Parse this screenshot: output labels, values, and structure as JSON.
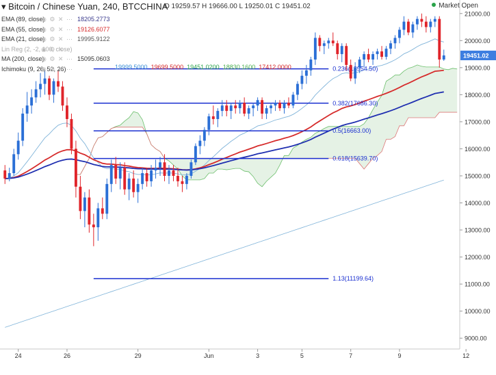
{
  "header": {
    "title": "Bitcoin / Chinese Yuan, 240, BTCCHINA",
    "ohlc_label": "O 19259.57 H 19666.00 L 19250.01 C 19451.02",
    "market_status": "Market Open"
  },
  "indicators": [
    {
      "label": "EMA (89, close)",
      "value": "18205.2773",
      "color": "#3a3a8c"
    },
    {
      "label": "EMA (55, close)",
      "value": "19126.6077",
      "color": "#d62b2b"
    },
    {
      "label": "EMA (21, close)",
      "value": "19995.9122",
      "color": "#555555"
    },
    {
      "label": "Lin Reg (2, -2, 100, close)",
      "value": "",
      "color": "#9aa7b5"
    },
    {
      "label": "MA (200, close)",
      "value": "15095.0603",
      "color": "#333333"
    },
    {
      "label": "Ichimoku (9, 26, 52, 26)",
      "value": "",
      "color": "#333333"
    }
  ],
  "ichimoku_values": [
    {
      "text": "19999.5000",
      "color": "#3b8fd6"
    },
    {
      "text": "19699.5000",
      "color": "#d62b2b"
    },
    {
      "text": "19451.0200",
      "color": "#2aa34a"
    },
    {
      "text": "18830.1600",
      "color": "#4caf50"
    },
    {
      "text": "17412.0000",
      "color": "#d62b2b"
    }
  ],
  "price_label": "19451.02",
  "chart_data": {
    "type": "candlestick",
    "title": "Bitcoin / Chinese Yuan, 240, BTCCHINA",
    "ylim": [
      8600,
      21500
    ],
    "y_ticks": [
      9000,
      10000,
      11000,
      12000,
      13000,
      14000,
      15000,
      16000,
      17000,
      18000,
      19000,
      20000,
      21000
    ],
    "x_ticks": [
      {
        "label": "24",
        "bar": 3
      },
      {
        "label": "26",
        "bar": 14
      },
      {
        "label": "29",
        "bar": 30
      },
      {
        "label": "Jun",
        "bar": 46
      },
      {
        "label": "3",
        "bar": 57
      },
      {
        "label": "5",
        "bar": 67
      },
      {
        "label": "7",
        "bar": 78
      },
      {
        "label": "9",
        "bar": 89
      },
      {
        "label": "12",
        "bar": 104
      }
    ],
    "fibonacci": [
      {
        "label": "0.236(18954.50)",
        "price": 18954.5,
        "bar_start": 20,
        "bar_end": 73
      },
      {
        "label": "0.382(17686.30)",
        "price": 17686.3,
        "bar_start": 20,
        "bar_end": 73
      },
      {
        "label": "0.5(16663.00)",
        "price": 16663.0,
        "bar_start": 20,
        "bar_end": 73
      },
      {
        "label": "0.618(15639.70)",
        "price": 15639.7,
        "bar_start": 20,
        "bar_end": 73
      },
      {
        "label": "1.13(11199.64)",
        "price": 11199.64,
        "bar_start": 20,
        "bar_end": 73
      }
    ],
    "candles": [
      [
        15200,
        15400,
        14700,
        14900
      ],
      [
        14900,
        15300,
        14800,
        15100
      ],
      [
        15100,
        16000,
        15000,
        15800
      ],
      [
        15800,
        16600,
        15600,
        16300
      ],
      [
        16300,
        17500,
        16100,
        17300
      ],
      [
        17300,
        18100,
        17000,
        17600
      ],
      [
        17600,
        18200,
        17300,
        17900
      ],
      [
        17900,
        18500,
        17700,
        18200
      ],
      [
        18200,
        18800,
        17900,
        18400
      ],
      [
        18400,
        18900,
        18000,
        18600
      ],
      [
        18600,
        18700,
        17800,
        18000
      ],
      [
        18000,
        18600,
        17700,
        18500
      ],
      [
        18500,
        18900,
        18100,
        18300
      ],
      [
        18300,
        18500,
        17400,
        17600
      ],
      [
        17600,
        17900,
        16800,
        17100
      ],
      [
        17100,
        17300,
        15800,
        16000
      ],
      [
        16000,
        16300,
        14200,
        14600
      ],
      [
        14600,
        15000,
        13400,
        13700
      ],
      [
        13700,
        14400,
        13100,
        14200
      ],
      [
        14200,
        14500,
        12900,
        13200
      ],
      [
        13200,
        13600,
        12400,
        13100
      ],
      [
        13100,
        14000,
        12600,
        13800
      ],
      [
        13800,
        14200,
        13400,
        13600
      ],
      [
        13600,
        14900,
        13400,
        14700
      ],
      [
        14700,
        15600,
        14400,
        15400
      ],
      [
        15400,
        15700,
        14700,
        14900
      ],
      [
        14900,
        15500,
        14500,
        15300
      ],
      [
        15300,
        15500,
        14300,
        14500
      ],
      [
        14500,
        15100,
        14100,
        14900
      ],
      [
        14900,
        15200,
        14200,
        14400
      ],
      [
        14400,
        14900,
        14000,
        14700
      ],
      [
        14700,
        15300,
        14500,
        15100
      ],
      [
        15100,
        15300,
        14600,
        14800
      ],
      [
        14800,
        15400,
        14600,
        15200
      ],
      [
        15200,
        15600,
        14900,
        15300
      ],
      [
        15300,
        15700,
        15000,
        15500
      ],
      [
        15500,
        15800,
        14800,
        15000
      ],
      [
        15000,
        15400,
        14700,
        15200
      ],
      [
        15200,
        15400,
        14800,
        15000
      ],
      [
        15000,
        15300,
        14600,
        14800
      ],
      [
        14800,
        15000,
        14400,
        14700
      ],
      [
        14700,
        15100,
        14500,
        15000
      ],
      [
        15000,
        15600,
        14900,
        15500
      ],
      [
        15500,
        16200,
        15400,
        16100
      ],
      [
        16100,
        16500,
        15800,
        16300
      ],
      [
        16300,
        16800,
        16100,
        16700
      ],
      [
        16700,
        17300,
        16500,
        17200
      ],
      [
        17200,
        17600,
        16900,
        17100
      ],
      [
        17100,
        17500,
        16800,
        17400
      ],
      [
        17400,
        17800,
        17200,
        17600
      ],
      [
        17600,
        17800,
        17200,
        17400
      ],
      [
        17400,
        17700,
        17100,
        17600
      ],
      [
        17600,
        17800,
        17300,
        17500
      ],
      [
        17500,
        17800,
        17300,
        17700
      ],
      [
        17700,
        17900,
        17200,
        17300
      ],
      [
        17300,
        17600,
        17100,
        17500
      ],
      [
        17500,
        17700,
        17200,
        17600
      ],
      [
        17600,
        17900,
        17400,
        17800
      ],
      [
        17800,
        17900,
        17100,
        17300
      ],
      [
        17300,
        17600,
        17100,
        17500
      ],
      [
        17500,
        17700,
        17300,
        17600
      ],
      [
        17600,
        17800,
        17400,
        17700
      ],
      [
        17700,
        17800,
        17400,
        17500
      ],
      [
        17500,
        17800,
        17300,
        17700
      ],
      [
        17700,
        17900,
        17500,
        17600
      ],
      [
        17600,
        18100,
        17500,
        18000
      ],
      [
        18000,
        18500,
        17800,
        18400
      ],
      [
        18400,
        18900,
        18200,
        18700
      ],
      [
        18700,
        19100,
        18400,
        18900
      ],
      [
        18900,
        19400,
        18700,
        19300
      ],
      [
        19300,
        20300,
        19100,
        20100
      ],
      [
        20100,
        20200,
        19600,
        19800
      ],
      [
        19800,
        20000,
        19500,
        19900
      ],
      [
        19900,
        20100,
        19700,
        20000
      ],
      [
        20000,
        20300,
        19800,
        19900
      ],
      [
        19900,
        20000,
        19300,
        19500
      ],
      [
        19500,
        19900,
        19200,
        19800
      ],
      [
        19800,
        19900,
        18900,
        19100
      ],
      [
        19100,
        19300,
        18500,
        18600
      ],
      [
        18600,
        19200,
        18400,
        19000
      ],
      [
        19000,
        19400,
        18800,
        19300
      ],
      [
        19300,
        19600,
        19000,
        19500
      ],
      [
        19500,
        19700,
        19200,
        19300
      ],
      [
        19300,
        19600,
        19100,
        19500
      ],
      [
        19500,
        19700,
        19300,
        19600
      ],
      [
        19600,
        19800,
        19300,
        19400
      ],
      [
        19400,
        19800,
        19300,
        19700
      ],
      [
        19700,
        20000,
        19500,
        19900
      ],
      [
        19900,
        20200,
        19700,
        20100
      ],
      [
        20100,
        20500,
        19900,
        20400
      ],
      [
        20400,
        20900,
        20200,
        20700
      ],
      [
        20700,
        20800,
        20200,
        20300
      ],
      [
        20300,
        20700,
        20100,
        20600
      ],
      [
        20600,
        20900,
        20400,
        20800
      ],
      [
        20800,
        21000,
        20500,
        20700
      ],
      [
        20700,
        20900,
        20300,
        20500
      ],
      [
        20500,
        20800,
        20300,
        20700
      ],
      [
        20700,
        20900,
        20500,
        20800
      ],
      [
        20800,
        20900,
        19000,
        19300
      ],
      [
        19300,
        19666,
        19250,
        19451
      ]
    ]
  }
}
